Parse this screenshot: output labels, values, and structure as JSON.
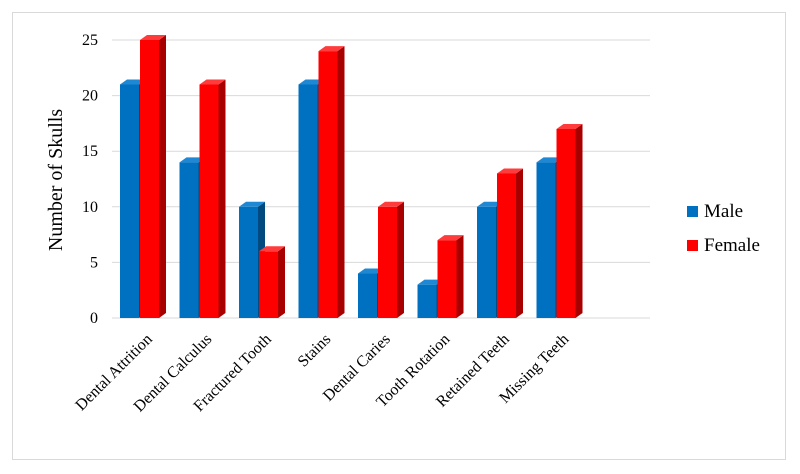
{
  "chart_data": {
    "type": "bar",
    "categories": [
      "Dental Attrition",
      "Dental Calculus",
      "Fractured Tooth",
      "Stains",
      "Dental Caries",
      "Tooth Rotation",
      "Retained Teeth",
      "Missing Teeth"
    ],
    "series": [
      {
        "name": "Male",
        "values": [
          21,
          14,
          10,
          21,
          4,
          3,
          10,
          14
        ],
        "color": "#0070c0",
        "side_color": "#004a80",
        "top_color": "#1f88d4"
      },
      {
        "name": "Female",
        "values": [
          25,
          21,
          6,
          24,
          10,
          7,
          13,
          17
        ],
        "color": "#ff0000",
        "side_color": "#a80000",
        "top_color": "#ff3b3b"
      }
    ],
    "title": "",
    "xlabel": "",
    "ylabel": "Number of Skulls",
    "ylim": [
      0,
      25
    ],
    "yticks": [
      0,
      5,
      10,
      15,
      20,
      25
    ],
    "grid": true,
    "legend_position": "right"
  }
}
